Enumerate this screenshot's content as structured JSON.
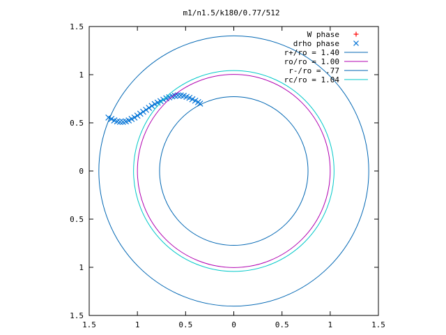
{
  "chart_data": {
    "type": "scatter",
    "title": "m1/n1.5/k180/0.77/512",
    "xlabel": "",
    "ylabel": "",
    "xlim": [
      -1.5,
      1.5
    ],
    "ylim": [
      -1.5,
      1.5
    ],
    "x_ticks": [
      {
        "value": -1.5,
        "label": "1.5"
      },
      {
        "value": -1.0,
        "label": "1"
      },
      {
        "value": -0.5,
        "label": "0.5"
      },
      {
        "value": 0.0,
        "label": "0"
      },
      {
        "value": 0.5,
        "label": "0.5"
      },
      {
        "value": 1.0,
        "label": "1"
      },
      {
        "value": 1.5,
        "label": "1.5"
      }
    ],
    "y_ticks": [
      {
        "value": 1.5,
        "label": "1.5"
      },
      {
        "value": 1.0,
        "label": "1"
      },
      {
        "value": 0.5,
        "label": "0.5"
      },
      {
        "value": 0.0,
        "label": "0"
      },
      {
        "value": -0.5,
        "label": "0.5"
      },
      {
        "value": -1.0,
        "label": "1"
      },
      {
        "value": -1.5,
        "label": "1.5"
      }
    ],
    "grid": false,
    "legend_position": "top-right",
    "series": [
      {
        "name": "W phase",
        "kind": "points",
        "marker": "plus",
        "color": "#ff0000",
        "x": [],
        "y": []
      },
      {
        "name": "drho phase",
        "kind": "points",
        "marker": "cross",
        "color": "#0072d6",
        "x": [
          -1.3,
          -1.27,
          -1.24,
          -1.21,
          -1.18,
          -1.15,
          -1.12,
          -1.09,
          -1.06,
          -1.03,
          -1.0,
          -0.97,
          -0.94,
          -0.91,
          -0.88,
          -0.85,
          -0.82,
          -0.79,
          -0.76,
          -0.73,
          -0.7,
          -0.67,
          -0.64,
          -0.61,
          -0.58,
          -0.55,
          -0.52,
          -0.49,
          -0.46,
          -0.43,
          -0.4,
          -0.37,
          -0.35
        ],
        "y": [
          0.555,
          0.54,
          0.525,
          0.515,
          0.51,
          0.51,
          0.515,
          0.525,
          0.54,
          0.555,
          0.575,
          0.595,
          0.615,
          0.635,
          0.655,
          0.675,
          0.695,
          0.71,
          0.725,
          0.74,
          0.755,
          0.765,
          0.775,
          0.78,
          0.785,
          0.785,
          0.78,
          0.77,
          0.76,
          0.745,
          0.73,
          0.715,
          0.7
        ]
      },
      {
        "name": "r+/ro = 1.40",
        "kind": "circle",
        "radius": 1.4,
        "color": "#0066b3"
      },
      {
        "name": "ro/ro = 1.00",
        "kind": "circle",
        "radius": 1.0,
        "color": "#b000b0"
      },
      {
        "name": "r-/ro = .77",
        "kind": "circle",
        "radius": 0.77,
        "color": "#0066b3"
      },
      {
        "name": "rc/ro = 1.04",
        "kind": "circle",
        "radius": 1.04,
        "color": "#00c8c8"
      }
    ]
  }
}
